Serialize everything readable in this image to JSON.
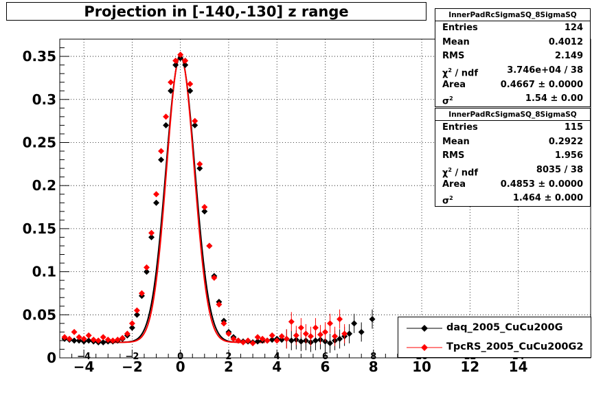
{
  "title": "Projection in [-140,-130] z range",
  "stats_boxes": [
    {
      "name": "InnerPadRcSigmaSQ_8SigmaSQ",
      "entries": "124",
      "mean": "0.4012",
      "rms": "2.149",
      "chi2ndf": "3.746e+04 / 38",
      "area": "0.4667 ± 0.0000",
      "sigma2": "1.54 ± 0.00"
    },
    {
      "name": "InnerPadRcSigmaSQ_8SigmaSQ",
      "entries": "115",
      "mean": "0.2922",
      "rms": "1.956",
      "chi2ndf": "8035 / 38",
      "area": "0.4853 ± 0.0000",
      "sigma2": "1.464 ± 0.000"
    }
  ],
  "stats_labels": {
    "entries": "Entries",
    "mean": "Mean",
    "rms": "RMS",
    "chi": "χ",
    "ndf": " / ndf",
    "area": "Area",
    "sigma": "σ",
    "sq": "2"
  },
  "legend": [
    {
      "label": "daq_2005_CuCu200G",
      "color": "#000000"
    },
    {
      "label": "TpcRS_2005_CuCu200G2",
      "color": "#ff0000"
    }
  ],
  "chart_data": {
    "type": "scatter",
    "title": "Projection in [-140,-130] z range",
    "xlabel": "",
    "ylabel": "",
    "xlim": [
      -5,
      17
    ],
    "ylim": [
      0,
      0.37
    ],
    "grid": true,
    "x_ticks": [
      -4,
      -2,
      0,
      2,
      4,
      6,
      8,
      10,
      12,
      14
    ],
    "x_ticks_inner": [
      -4,
      -2,
      0,
      2,
      4,
      6,
      8,
      10,
      12,
      14
    ],
    "y_ticks": [
      0,
      0.05,
      0.1,
      0.15,
      0.2,
      0.25,
      0.3,
      0.35
    ],
    "y_tick_labels": [
      "0",
      "0.05",
      "0.1",
      "0.15",
      "0.2",
      "0.25",
      "0.3",
      "0.35"
    ],
    "legend_position": "bottom-right",
    "series": [
      {
        "name": "daq_2005_CuCu200G",
        "color": "#000000",
        "fit": {
          "amplitude": 0.35,
          "mean": 0,
          "sigma": 0.6,
          "baseline": 0.018
        },
        "points": [
          {
            "x": -4.8,
            "y": 0.022
          },
          {
            "x": -4.6,
            "y": 0.021
          },
          {
            "x": -4.4,
            "y": 0.02
          },
          {
            "x": -4.2,
            "y": 0.02
          },
          {
            "x": -4.0,
            "y": 0.019
          },
          {
            "x": -3.8,
            "y": 0.02
          },
          {
            "x": -3.6,
            "y": 0.019
          },
          {
            "x": -3.4,
            "y": 0.018
          },
          {
            "x": -3.2,
            "y": 0.018
          },
          {
            "x": -3.0,
            "y": 0.019
          },
          {
            "x": -2.8,
            "y": 0.019
          },
          {
            "x": -2.6,
            "y": 0.02
          },
          {
            "x": -2.4,
            "y": 0.022
          },
          {
            "x": -2.2,
            "y": 0.026
          },
          {
            "x": -2.0,
            "y": 0.035
          },
          {
            "x": -1.8,
            "y": 0.05
          },
          {
            "x": -1.6,
            "y": 0.072
          },
          {
            "x": -1.4,
            "y": 0.1
          },
          {
            "x": -1.2,
            "y": 0.14
          },
          {
            "x": -1.0,
            "y": 0.18
          },
          {
            "x": -0.8,
            "y": 0.23
          },
          {
            "x": -0.6,
            "y": 0.27
          },
          {
            "x": -0.4,
            "y": 0.31
          },
          {
            "x": -0.2,
            "y": 0.34
          },
          {
            "x": 0.0,
            "y": 0.348
          },
          {
            "x": 0.2,
            "y": 0.34
          },
          {
            "x": 0.4,
            "y": 0.31
          },
          {
            "x": 0.6,
            "y": 0.27
          },
          {
            "x": 0.8,
            "y": 0.22
          },
          {
            "x": 1.0,
            "y": 0.17
          },
          {
            "x": 1.2,
            "y": 0.13
          },
          {
            "x": 1.4,
            "y": 0.095
          },
          {
            "x": 1.6,
            "y": 0.065
          },
          {
            "x": 1.8,
            "y": 0.043
          },
          {
            "x": 2.0,
            "y": 0.03
          },
          {
            "x": 2.2,
            "y": 0.024
          },
          {
            "x": 2.4,
            "y": 0.02
          },
          {
            "x": 2.6,
            "y": 0.019
          },
          {
            "x": 2.8,
            "y": 0.019
          },
          {
            "x": 3.0,
            "y": 0.018
          },
          {
            "x": 3.2,
            "y": 0.019
          },
          {
            "x": 3.4,
            "y": 0.02
          },
          {
            "x": 3.6,
            "y": 0.02
          },
          {
            "x": 3.8,
            "y": 0.021
          },
          {
            "x": 4.0,
            "y": 0.022
          },
          {
            "x": 4.2,
            "y": 0.021
          },
          {
            "x": 4.4,
            "y": 0.022
          },
          {
            "x": 4.6,
            "y": 0.02
          },
          {
            "x": 4.8,
            "y": 0.021
          },
          {
            "x": 5.0,
            "y": 0.019
          },
          {
            "x": 5.2,
            "y": 0.02
          },
          {
            "x": 5.4,
            "y": 0.018
          },
          {
            "x": 5.6,
            "y": 0.02
          },
          {
            "x": 5.8,
            "y": 0.021
          },
          {
            "x": 6.0,
            "y": 0.019
          },
          {
            "x": 6.2,
            "y": 0.017
          },
          {
            "x": 6.4,
            "y": 0.02
          },
          {
            "x": 6.6,
            "y": 0.022
          },
          {
            "x": 6.8,
            "y": 0.025
          },
          {
            "x": 7.0,
            "y": 0.028
          },
          {
            "x": 7.2,
            "y": 0.04
          },
          {
            "x": 7.5,
            "y": 0.03
          },
          {
            "x": 7.95,
            "y": 0.045
          }
        ]
      },
      {
        "name": "TpcRS_2005_CuCu200G2",
        "color": "#ff0000",
        "fit": {
          "amplitude": 0.352,
          "mean": 0,
          "sigma": 0.57,
          "baseline": 0.018
        },
        "points": [
          {
            "x": -4.8,
            "y": 0.024
          },
          {
            "x": -4.6,
            "y": 0.022
          },
          {
            "x": -4.4,
            "y": 0.03
          },
          {
            "x": -4.2,
            "y": 0.024
          },
          {
            "x": -4.0,
            "y": 0.022
          },
          {
            "x": -3.8,
            "y": 0.026
          },
          {
            "x": -3.6,
            "y": 0.021
          },
          {
            "x": -3.4,
            "y": 0.02
          },
          {
            "x": -3.2,
            "y": 0.024
          },
          {
            "x": -3.0,
            "y": 0.021
          },
          {
            "x": -2.8,
            "y": 0.02
          },
          {
            "x": -2.6,
            "y": 0.021
          },
          {
            "x": -2.4,
            "y": 0.023
          },
          {
            "x": -2.2,
            "y": 0.028
          },
          {
            "x": -2.0,
            "y": 0.04
          },
          {
            "x": -1.8,
            "y": 0.055
          },
          {
            "x": -1.6,
            "y": 0.075
          },
          {
            "x": -1.4,
            "y": 0.105
          },
          {
            "x": -1.2,
            "y": 0.145
          },
          {
            "x": -1.0,
            "y": 0.19
          },
          {
            "x": -0.8,
            "y": 0.24
          },
          {
            "x": -0.6,
            "y": 0.28
          },
          {
            "x": -0.4,
            "y": 0.32
          },
          {
            "x": -0.2,
            "y": 0.345
          },
          {
            "x": 0.0,
            "y": 0.352
          },
          {
            "x": 0.2,
            "y": 0.345
          },
          {
            "x": 0.4,
            "y": 0.318
          },
          {
            "x": 0.6,
            "y": 0.275
          },
          {
            "x": 0.8,
            "y": 0.225
          },
          {
            "x": 1.0,
            "y": 0.175
          },
          {
            "x": 1.2,
            "y": 0.13
          },
          {
            "x": 1.4,
            "y": 0.093
          },
          {
            "x": 1.6,
            "y": 0.062
          },
          {
            "x": 1.8,
            "y": 0.04
          },
          {
            "x": 2.0,
            "y": 0.028
          },
          {
            "x": 2.2,
            "y": 0.022
          },
          {
            "x": 2.4,
            "y": 0.02
          },
          {
            "x": 2.6,
            "y": 0.018
          },
          {
            "x": 2.8,
            "y": 0.02
          },
          {
            "x": 3.0,
            "y": 0.017
          },
          {
            "x": 3.2,
            "y": 0.024
          },
          {
            "x": 3.4,
            "y": 0.022
          },
          {
            "x": 3.6,
            "y": 0.02
          },
          {
            "x": 3.8,
            "y": 0.026
          },
          {
            "x": 4.0,
            "y": 0.02
          },
          {
            "x": 4.2,
            "y": 0.025
          },
          {
            "x": 4.4,
            "y": 0.022
          },
          {
            "x": 4.6,
            "y": 0.042
          },
          {
            "x": 4.8,
            "y": 0.026
          },
          {
            "x": 5.0,
            "y": 0.035
          },
          {
            "x": 5.2,
            "y": 0.028
          },
          {
            "x": 5.4,
            "y": 0.025
          },
          {
            "x": 5.6,
            "y": 0.035
          },
          {
            "x": 5.8,
            "y": 0.027
          },
          {
            "x": 6.0,
            "y": 0.03
          },
          {
            "x": 6.2,
            "y": 0.04
          },
          {
            "x": 6.4,
            "y": 0.025
          },
          {
            "x": 6.6,
            "y": 0.045
          },
          {
            "x": 6.8,
            "y": 0.028
          }
        ]
      }
    ]
  }
}
